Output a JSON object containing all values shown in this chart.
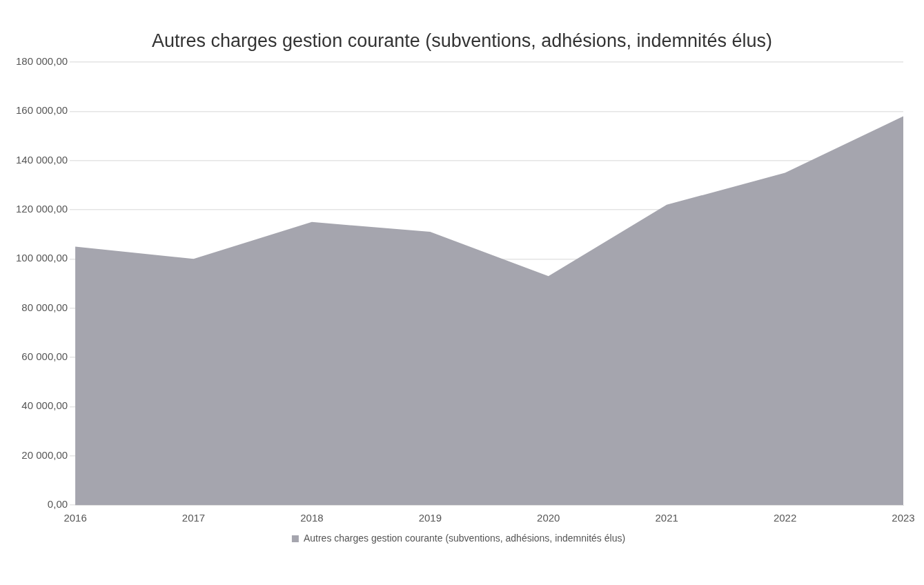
{
  "chart_data": {
    "type": "area",
    "title": "Autres charges gestion courante (subventions, adhésions, indemnités élus)",
    "categories": [
      "2016",
      "2017",
      "2018",
      "2019",
      "2020",
      "2021",
      "2022",
      "2023"
    ],
    "series": [
      {
        "name": "Autres charges gestion courante (subventions, adhésions, indemnités élus)",
        "color": "#a5a5ae",
        "values": [
          105000,
          100000,
          115000,
          111000,
          93000,
          122000,
          135000,
          158000
        ]
      }
    ],
    "ylim": [
      0,
      180000
    ],
    "yticks": [
      {
        "value": 0,
        "label": "0,00"
      },
      {
        "value": 20000,
        "label": "20 000,00"
      },
      {
        "value": 40000,
        "label": "40 000,00"
      },
      {
        "value": 60000,
        "label": "60 000,00"
      },
      {
        "value": 80000,
        "label": "80 000,00"
      },
      {
        "value": 100000,
        "label": "100 000,00"
      },
      {
        "value": 120000,
        "label": "120 000,00"
      },
      {
        "value": 140000,
        "label": "140 000,00"
      },
      {
        "value": 160000,
        "label": "160 000,00"
      },
      {
        "value": 180000,
        "label": "180 000,00"
      }
    ],
    "grid": "y",
    "legend": "bottom"
  }
}
